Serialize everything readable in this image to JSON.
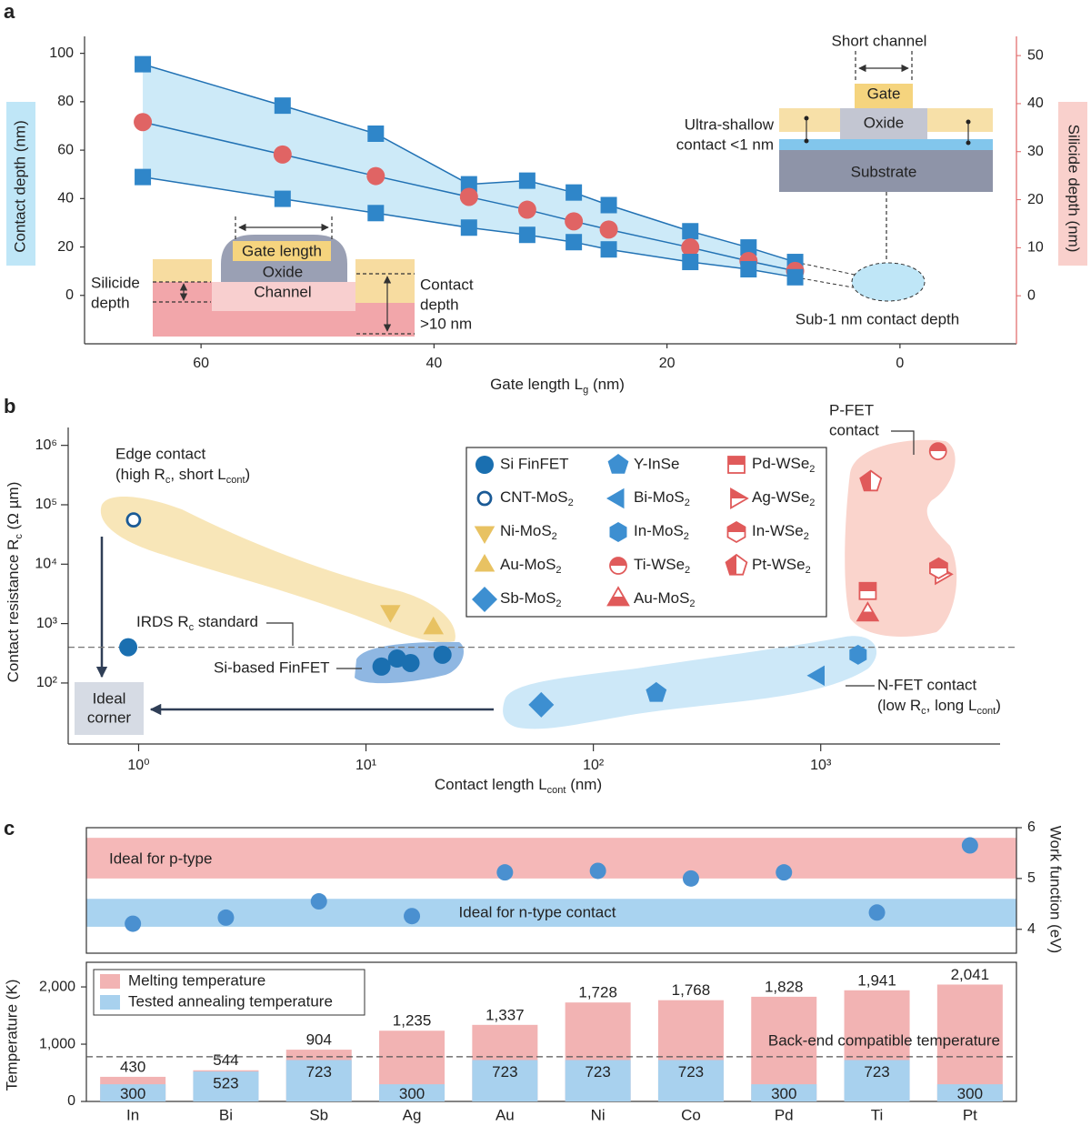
{
  "chart_data": [
    {
      "type": "line",
      "panel": "a",
      "xlabel": [
        "Gate length L",
        "g",
        " (nm)"
      ],
      "ylabel": "Contact depth (nm)",
      "y2label": "Silicide depth (nm)",
      "xlim": [
        70,
        -10
      ],
      "xticks": [
        60,
        40,
        20,
        0
      ],
      "ylim": [
        -20,
        107
      ],
      "yticks": [
        0,
        20,
        40,
        60,
        80,
        100
      ],
      "y2lim": [
        -10,
        54
      ],
      "y2ticks": [
        0,
        10,
        20,
        30,
        40,
        50
      ],
      "x": [
        65,
        53,
        45,
        37,
        32,
        28,
        25,
        18,
        13,
        9
      ],
      "band_color": "#cdeaf8",
      "series": [
        {
          "color": "#2f86c9",
          "marker": "square",
          "values": [
            95.5,
            78.4,
            66.8,
            45.9,
            47.4,
            42.5,
            37.3,
            26.5,
            19.8,
            13.8
          ]
        },
        {
          "color": "#e06464",
          "marker": "circle",
          "values": [
            71.6,
            58.2,
            49.3,
            40.7,
            35.4,
            30.6,
            27.2,
            19.8,
            14.2,
            10.1
          ]
        },
        {
          "color": "#2f86c9",
          "marker": "square",
          "values": [
            48.9,
            39.9,
            34,
            28,
            25,
            22,
            19,
            13.8,
            10.8,
            7.5
          ]
        }
      ],
      "annotations": [
        "Short channel",
        "Gate",
        "Oxide",
        "Substrate",
        "Ultra-shallow",
        "contact <1 nm",
        "Sub-1 nm contact depth",
        "Gate length",
        "Oxide",
        "Channel",
        "Silicide",
        "depth",
        "Contact",
        "depth",
        ">10 nm"
      ]
    },
    {
      "type": "scatter",
      "panel": "b",
      "log_x": true,
      "log_y": true,
      "xlabel": [
        "Contact length L",
        "cont",
        " (nm)"
      ],
      "ylabel": [
        "Contact resistance R",
        "c",
        " (Ω µm)"
      ],
      "xlim": [
        0.49,
        6150
      ],
      "xticks": [
        {
          "value": 1,
          "label": "10⁰"
        },
        {
          "value": 10,
          "label": "10¹"
        },
        {
          "value": 100,
          "label": "10²"
        },
        {
          "value": 1000,
          "label": "10³"
        }
      ],
      "ylim": [
        9.4,
        2000000
      ],
      "yticks": [
        {
          "value": 100,
          "label": "10²"
        },
        {
          "value": 1000,
          "label": "10³"
        },
        {
          "value": 10000,
          "label": "10⁴"
        },
        {
          "value": 100000,
          "label": "10⁵"
        },
        {
          "value": 1000000,
          "label": "10⁶"
        }
      ],
      "reference": {
        "value": 400,
        "label": [
          "IRDS R",
          "c",
          " standard"
        ]
      },
      "series": [
        {
          "name": "Si FinFET",
          "color": "#1a6fb0",
          "marker": "circle",
          "x": [
            0.9,
            11.7,
            13.7,
            15.7,
            21.7
          ],
          "values": [
            400,
            189,
            258,
            217,
            299
          ]
        },
        {
          "name": [
            "CNT-MoS",
            "2"
          ],
          "color": "#1a5a96",
          "marker": "circle-open",
          "x": [
            0.95
          ],
          "values": [
            55600
          ]
        },
        {
          "name": [
            "Ni-MoS",
            "2"
          ],
          "color": "#e8c262",
          "marker": "tri-down",
          "x": [
            12.8
          ],
          "values": [
            1630
          ]
        },
        {
          "name": [
            "Au-MoS",
            "2"
          ],
          "color": "#e8c262",
          "marker": "tri-up",
          "x": [
            19.8
          ],
          "values": [
            830
          ]
        },
        {
          "name": [
            "Sb-MoS",
            "2"
          ],
          "color": "#3d8fd1",
          "marker": "diamond",
          "x": [
            59
          ],
          "values": [
            43
          ]
        },
        {
          "name": "Y-InSe",
          "color": "#3d8fd1",
          "marker": "pentagon",
          "x": [
            189
          ],
          "values": [
            68
          ]
        },
        {
          "name": [
            "Bi-MoS",
            "2"
          ],
          "color": "#3d8fd1",
          "marker": "tri-left",
          "x": [
            980
          ],
          "values": [
            133
          ]
        },
        {
          "name": [
            "In-MoS",
            "2"
          ],
          "color": "#3d8fd1",
          "marker": "hexagon",
          "x": [
            1460
          ],
          "values": [
            299
          ]
        },
        {
          "name": [
            "Ti-WSe",
            "2"
          ],
          "color": "#e05a5a",
          "marker": "half-circle",
          "x": [
            3280
          ],
          "values": [
            795000
          ]
        },
        {
          "name": [
            "Au-MoS",
            "2"
          ],
          "color": "#e05a5a",
          "marker": "tri-half",
          "x": [
            1610
          ],
          "values": [
            1410
          ]
        },
        {
          "name": [
            "Pd-WSe",
            "2"
          ],
          "color": "#e05a5a",
          "marker": "half-square",
          "x": [
            1610
          ],
          "values": [
            3540
          ]
        },
        {
          "name": [
            "Ag-WSe",
            "2"
          ],
          "color": "#e05a5a",
          "marker": "half-tri-right",
          "x": [
            3380
          ],
          "values": [
            6760
          ]
        },
        {
          "name": [
            "In-WSe",
            "2"
          ],
          "color": "#e05a5a",
          "marker": "half-hexagon",
          "x": [
            3300
          ],
          "values": [
            8530
          ]
        },
        {
          "name": [
            "Pt-WSe",
            "2"
          ],
          "color": "#e05a5a",
          "marker": "half-pentagon",
          "x": [
            1660
          ],
          "values": [
            245000
          ]
        }
      ],
      "annotations": {
        "edge": [
          "Edge contact"
        ],
        "edge_sub": [
          "(high R",
          "c",
          ", short L",
          "cont",
          ")"
        ],
        "finfet": "Si-based FinFET",
        "ideal": [
          "Ideal",
          "corner"
        ],
        "pfet": [
          "P-FET",
          "contact"
        ],
        "nfet": "N-FET contact",
        "nfet_sub": [
          "(low R",
          "c",
          ", long L",
          "cont",
          ")"
        ]
      }
    },
    {
      "type": "bar",
      "panel": "c",
      "categories": [
        "In",
        "Bi",
        "Sb",
        "Ag",
        "Au",
        "Ni",
        "Co",
        "Pd",
        "Ti",
        "Pt"
      ],
      "ylabel": "Temperature (K)",
      "ylim": [
        0,
        2430
      ],
      "yticks": [
        0,
        {
          "value": 1000,
          "label": "1,000"
        },
        {
          "value": 2000,
          "label": "2,000"
        }
      ],
      "y2label": "Work function (eV)",
      "y2lim": [
        3.53,
        6.0
      ],
      "y2ticks": [
        4,
        5,
        6
      ],
      "reference": {
        "value": 780,
        "label": "Back-end compatible temperature"
      },
      "bands": [
        {
          "label": "Ideal for p-type",
          "range": [
            5.0,
            5.8
          ],
          "color": "#f5b8b8"
        },
        {
          "label": "Ideal for n-type contact",
          "range": [
            4.05,
            4.6
          ],
          "color": "#a9d3f0"
        }
      ],
      "series": [
        {
          "name": "Melting temperature",
          "color": "#f2b3b3",
          "values": [
            430,
            544,
            904,
            1235,
            1337,
            1728,
            1768,
            1828,
            1941,
            2041
          ],
          "value_labels": [
            "430",
            "544",
            "904",
            "1,235",
            "1,337",
            "1,728",
            "1,768",
            "1,828",
            "1,941",
            "2,041"
          ]
        },
        {
          "name": "Tested annealing temperature",
          "color": "#a8d1ee",
          "values": [
            300,
            523,
            723,
            300,
            723,
            723,
            723,
            300,
            723,
            300
          ]
        },
        {
          "axis": "y2",
          "color": "#4a90d0",
          "values": [
            4.11,
            4.23,
            4.55,
            4.26,
            5.12,
            5.15,
            5.0,
            5.12,
            4.33,
            5.65
          ]
        }
      ]
    }
  ]
}
